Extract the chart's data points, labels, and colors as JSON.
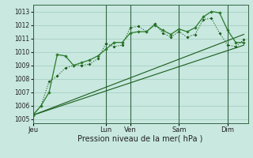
{
  "bg_color": "#c8e8e0",
  "grid_color": "#a0ccba",
  "line_dark": "#1a5c1a",
  "line_med": "#2a7a2a",
  "yticks": [
    1005,
    1006,
    1007,
    1008,
    1009,
    1010,
    1011,
    1012,
    1013
  ],
  "xtick_pos": [
    0,
    9,
    12,
    18,
    24
  ],
  "xtick_labels": [
    "Jeu",
    "Lun",
    "Ven",
    "Sam",
    "Dim"
  ],
  "xlabel": "Pression niveau de la mer( hPa )",
  "s1": [
    1005.3,
    1006.0,
    1007.8,
    1008.2,
    1008.8,
    1009.0,
    1009.0,
    1009.1,
    1009.5,
    1010.6,
    1010.4,
    1010.5,
    1011.8,
    1011.9,
    1011.5,
    1012.1,
    1011.4,
    1011.1,
    1011.5,
    1011.1,
    1011.3,
    1012.4,
    1012.5,
    1011.4,
    1010.5,
    1010.4,
    1010.9
  ],
  "s2": [
    1005.3,
    1006.0,
    1007.0,
    1009.8,
    1009.7,
    1009.0,
    1009.2,
    1009.4,
    1009.7,
    1010.2,
    1010.7,
    1010.7,
    1011.4,
    1011.5,
    1011.5,
    1012.0,
    1011.6,
    1011.3,
    1011.7,
    1011.5,
    1011.8,
    1012.6,
    1013.0,
    1012.9,
    1011.6,
    1010.7,
    1010.7
  ],
  "trend1": [
    1005.3,
    1010.5
  ],
  "trend2": [
    1005.3,
    1011.3
  ],
  "ylim": [
    1004.7,
    1013.5
  ],
  "xlim": [
    0,
    26.5
  ],
  "n": 27
}
